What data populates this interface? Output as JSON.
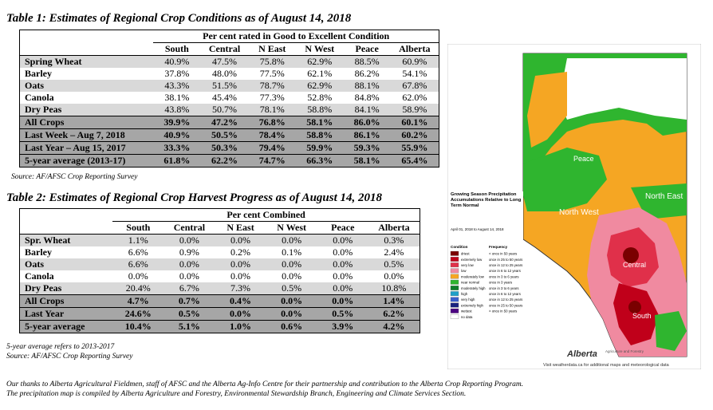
{
  "table1": {
    "title": "Table 1: Estimates of Regional Crop Conditions as of August 14, 2018",
    "group_header": "Per cent rated in Good to Excellent Condition",
    "columns": [
      "South",
      "Central",
      "N East",
      "N West",
      "Peace",
      "Alberta"
    ],
    "rows": [
      {
        "label": "Spring Wheat",
        "values": [
          "40.9%",
          "47.5%",
          "75.8%",
          "62.9%",
          "88.5%",
          "60.9%"
        ]
      },
      {
        "label": "Barley",
        "values": [
          "37.8%",
          "48.0%",
          "77.5%",
          "62.1%",
          "86.2%",
          "54.1%"
        ]
      },
      {
        "label": "Oats",
        "values": [
          "43.3%",
          "51.5%",
          "78.7%",
          "62.9%",
          "88.1%",
          "67.8%"
        ]
      },
      {
        "label": "Canola",
        "values": [
          "38.1%",
          "45.4%",
          "77.3%",
          "52.8%",
          "84.8%",
          "62.0%"
        ]
      },
      {
        "label": "Dry Peas",
        "values": [
          "43.8%",
          "50.7%",
          "78.1%",
          "58.8%",
          "84.1%",
          "58.9%"
        ]
      },
      {
        "label": "All Crops",
        "values": [
          "39.9%",
          "47.2%",
          "76.8%",
          "58.1%",
          "86.0%",
          "60.1%"
        ]
      },
      {
        "label": "Last Week – Aug 7, 2018",
        "values": [
          "40.9%",
          "50.5%",
          "78.4%",
          "58.8%",
          "86.1%",
          "60.2%"
        ]
      },
      {
        "label": "Last Year – Aug 15, 2017",
        "values": [
          "33.3%",
          "50.3%",
          "79.4%",
          "59.9%",
          "59.3%",
          "55.9%"
        ]
      },
      {
        "label": "5-year average (2013-17)",
        "values": [
          "61.8%",
          "62.2%",
          "74.7%",
          "66.3%",
          "58.1%",
          "65.4%"
        ]
      }
    ],
    "source": "Source: AF/AFSC Crop Reporting Survey"
  },
  "table2": {
    "title": "Table 2: Estimates of Regional Crop Harvest Progress as of August 14, 2018",
    "group_header": "Per cent Combined",
    "columns": [
      "South",
      "Central",
      "N East",
      "N West",
      "Peace",
      "Alberta"
    ],
    "rows": [
      {
        "label": "Spr. Wheat",
        "values": [
          "1.1%",
          "0.0%",
          "0.0%",
          "0.0%",
          "0.0%",
          "0.3%"
        ]
      },
      {
        "label": "Barley",
        "values": [
          "6.6%",
          "0.9%",
          "0.2%",
          "0.1%",
          "0.0%",
          "2.4%"
        ]
      },
      {
        "label": "Oats",
        "values": [
          "6.6%",
          "0.0%",
          "0.0%",
          "0.0%",
          "0.0%",
          "0.5%"
        ]
      },
      {
        "label": "Canola",
        "values": [
          "0.0%",
          "0.0%",
          "0.0%",
          "0.0%",
          "0.0%",
          "0.0%"
        ]
      },
      {
        "label": "Dry Peas",
        "values": [
          "20.4%",
          "6.7%",
          "7.3%",
          "0.5%",
          "0.0%",
          "10.8%"
        ]
      },
      {
        "label": "All Crops",
        "values": [
          "4.7%",
          "0.7%",
          "0.4%",
          "0.0%",
          "0.0%",
          "1.4%"
        ]
      },
      {
        "label": "Last Year",
        "values": [
          "24.6%",
          "0.5%",
          "0.0%",
          "0.0%",
          "0.5%",
          "6.2%"
        ]
      },
      {
        "label": "5-year average",
        "values": [
          "10.4%",
          "5.1%",
          "1.0%",
          "0.6%",
          "3.9%",
          "4.2%"
        ]
      }
    ],
    "note": "5-year average refers to 2013-2017",
    "source": "Source: AF/AFSC Crop Reporting Survey"
  },
  "footer": {
    "line1": "Our thanks to Alberta Agricultural Fieldmen, staff of AFSC and the Alberta Ag-Info Centre for their partnership and contribution to the Alberta Crop Reporting Program.",
    "line2": "The precipitation map is compiled by Alberta Agriculture and Forestry, Environmental Stewardship Branch, Engineering and Climate Services Section."
  },
  "map": {
    "legend_title": "Growing Season Precipitation Accumulations Relative to Long Term Normal",
    "date_range": "April 01, 2018 to August 14, 2018",
    "legend_col1": "Condition",
    "legend_col2": "Frequency",
    "legend_items": [
      {
        "label": "driest",
        "freq": "< once in 50 years",
        "color": "#7a0000"
      },
      {
        "label": "extremely low",
        "freq": "once in 25 to 50 years",
        "color": "#c0001a"
      },
      {
        "label": "very low",
        "freq": "once in 12 to 25 years",
        "color": "#e0304a"
      },
      {
        "label": "low",
        "freq": "once in 6 to 12 years",
        "color": "#f08aa0"
      },
      {
        "label": "moderately low",
        "freq": "once in 3 to 6 years",
        "color": "#f5a623"
      },
      {
        "label": "near normal",
        "freq": "once in 3 years",
        "color": "#2fb52f"
      },
      {
        "label": "moderately high",
        "freq": "once in 3 to 6 years",
        "color": "#0e7d2a"
      },
      {
        "label": "high",
        "freq": "once in 6 to 12 years",
        "color": "#1fa0c8"
      },
      {
        "label": "very high",
        "freq": "once in 12 to 25 years",
        "color": "#3a5fcd"
      },
      {
        "label": "extremely high",
        "freq": "once in 25 to 50 years",
        "color": "#1a237e"
      },
      {
        "label": "wettest",
        "freq": "> once in 50 years",
        "color": "#4a0080"
      },
      {
        "label": "no data",
        "freq": "",
        "color": "#ffffff"
      }
    ],
    "regions": [
      "Peace",
      "North East",
      "North West",
      "Central",
      "South"
    ],
    "brand": "Alberta",
    "brand_sub": "Agriculture and Forestry",
    "visit": "Visit weatherdata.ca for additional maps and meteorological data"
  }
}
